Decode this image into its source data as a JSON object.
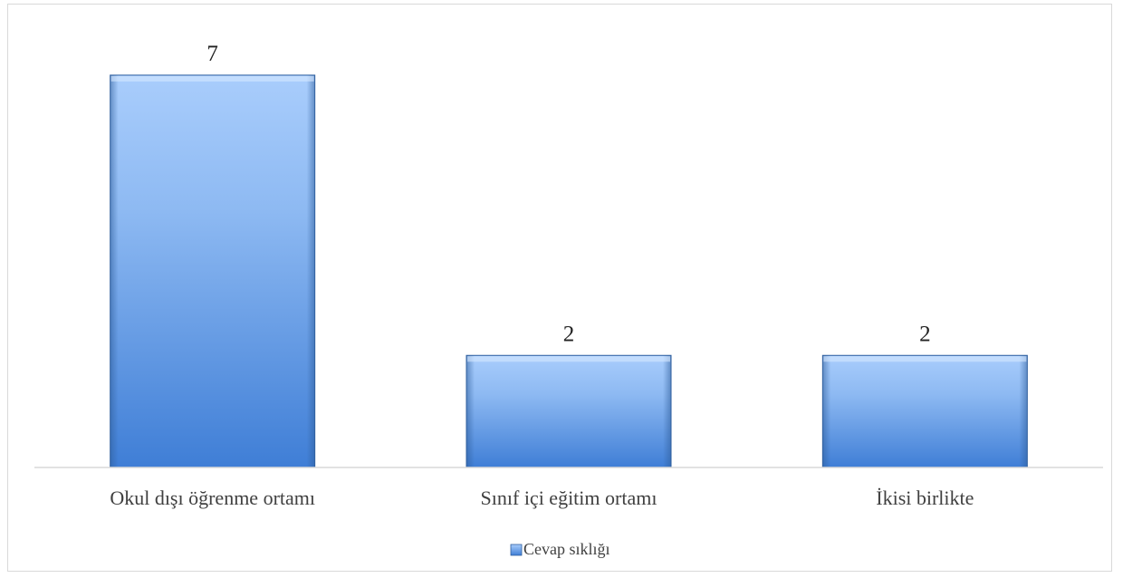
{
  "chart_data": {
    "type": "bar",
    "categories": [
      "Okul dışı öğrenme ortamı",
      "Sınıf içi eğitim ortamı",
      "İkisi birlikte"
    ],
    "series": [
      {
        "name": "Cevap sıklığı",
        "values": [
          7,
          2,
          2
        ]
      }
    ],
    "ylim": [
      0,
      7.5
    ],
    "grid": false,
    "legend_position": "bottom",
    "bar_color_top": "#a9cdfc",
    "bar_color_bottom": "#3f7ed6",
    "bar_edge_color": "#2f5f9f",
    "show_data_labels": true
  }
}
